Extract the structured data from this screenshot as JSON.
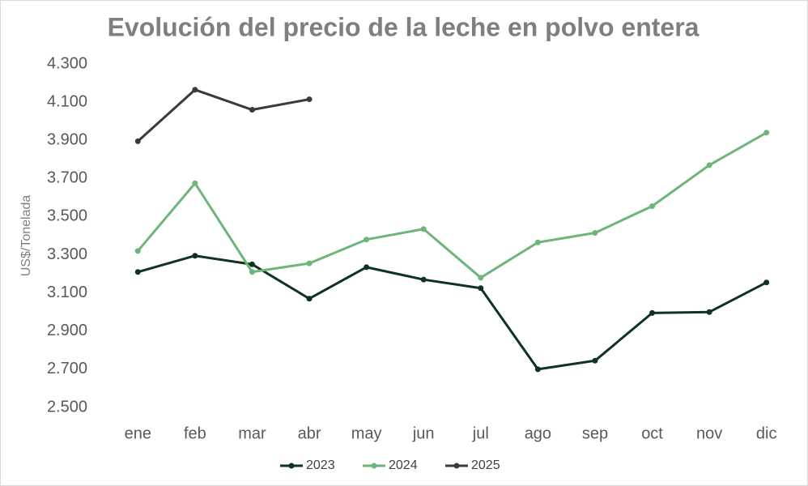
{
  "chart_data": {
    "type": "line",
    "title": "Evolución del precio de la leche en polvo entera",
    "y_label": "US$/Tonelada",
    "categories": [
      "ene",
      "feb",
      "mar",
      "abr",
      "may",
      "jun",
      "jul",
      "ago",
      "sep",
      "oct",
      "nov",
      "dic"
    ],
    "series": [
      {
        "name": "2023",
        "color": "#0f3320",
        "values": [
          3210,
          3295,
          3250,
          3070,
          3235,
          3170,
          3125,
          2700,
          2745,
          2995,
          3000,
          3155
        ]
      },
      {
        "name": "2024",
        "color": "#6db57a",
        "values": [
          3320,
          3675,
          3210,
          3255,
          3380,
          3435,
          3180,
          3365,
          3415,
          3555,
          3770,
          3940
        ]
      },
      {
        "name": "2025",
        "color": "#3a3940",
        "values": [
          3895,
          4165,
          4060,
          4115,
          null,
          null,
          null,
          null,
          null,
          null,
          null,
          null
        ]
      }
    ],
    "ylim": [
      2500,
      4300
    ],
    "yticks": [
      {
        "value": 2500,
        "label": "2.500"
      },
      {
        "value": 2700,
        "label": "2.700"
      },
      {
        "value": 2900,
        "label": "2.900"
      },
      {
        "value": 3100,
        "label": "3.100"
      },
      {
        "value": 3300,
        "label": "3.300"
      },
      {
        "value": 3500,
        "label": "3.500"
      },
      {
        "value": 3700,
        "label": "3.700"
      },
      {
        "value": 3900,
        "label": "3.900"
      },
      {
        "value": 4100,
        "label": "4.100"
      },
      {
        "value": 4300,
        "label": "4.300"
      }
    ],
    "grid": false,
    "legend": "bottom"
  }
}
